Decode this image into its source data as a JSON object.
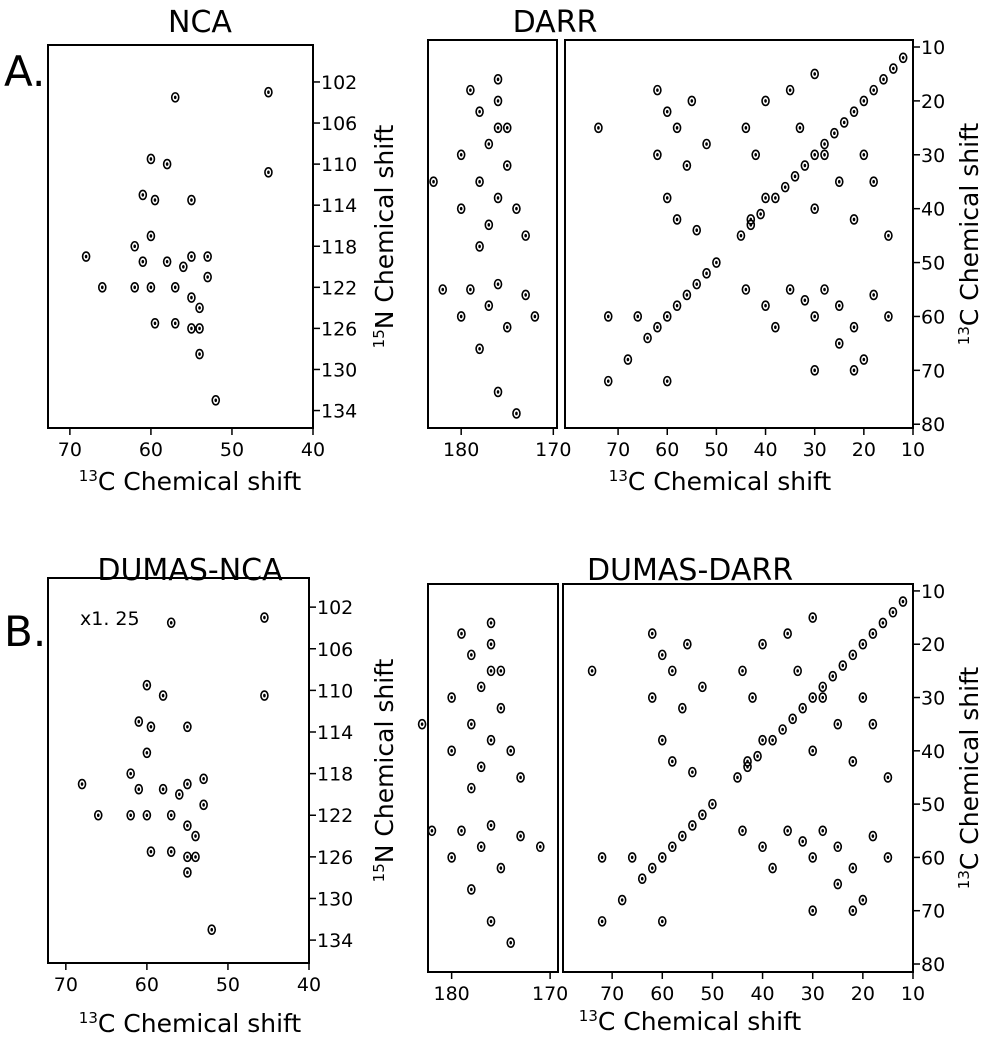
{
  "chart_data": [
    {
      "type": "scatter",
      "panel_label": "A.",
      "title": "NCA",
      "x_label": {
        "sup": "13",
        "text": "C Chemical shift"
      },
      "y_label": {
        "sup": "15",
        "text": "N Chemical shift"
      },
      "color": "#000000",
      "ylim": [
        98.4,
        135.7
      ],
      "yticks": [
        102,
        106,
        110,
        114,
        118,
        122,
        126,
        130,
        134
      ],
      "segments": [
        {
          "xlim": [
            72.7,
            40
          ],
          "xticks": [
            70,
            60,
            50,
            40
          ],
          "x": [
            57,
            45.5,
            45.5,
            60,
            58,
            61,
            59.5,
            55,
            60,
            62,
            58,
            56,
            55,
            53,
            68,
            66,
            62,
            60,
            57,
            55,
            54,
            55,
            59.5,
            57,
            54,
            54,
            52,
            61,
            53
          ],
          "y": [
            103.5,
            103,
            110.8,
            109.5,
            110,
            113,
            113.5,
            113.5,
            117,
            118,
            119.5,
            120,
            119,
            121,
            119,
            122,
            122,
            122,
            122,
            123,
            124,
            126,
            125.5,
            125.5,
            126,
            128.5,
            133,
            119.5,
            119
          ]
        }
      ]
    },
    {
      "type": "scatter",
      "title": "DARR",
      "x_label": {
        "sup": "13",
        "text": "C Chemical shift"
      },
      "y_label": {
        "sup": "13",
        "text": "C Chemical shift"
      },
      "color": "#000000",
      "ylim": [
        8.7,
        80.7
      ],
      "yticks": [
        10,
        20,
        30,
        40,
        50,
        60,
        70,
        80
      ],
      "segments": [
        {
          "xlim": [
            183.6,
            169.6
          ],
          "xticks": [
            180,
            170
          ],
          "x": [
            179,
            176,
            178,
            176,
            180,
            177,
            175,
            178,
            176,
            174,
            180,
            177,
            173,
            176,
            183,
            179,
            176,
            173,
            180,
            177,
            175,
            182,
            178,
            172,
            176,
            174,
            175,
            178
          ],
          "y": [
            18,
            16,
            22,
            25,
            30,
            28,
            32,
            35,
            38,
            40,
            40,
            43,
            45,
            20,
            35,
            55,
            54,
            56,
            60,
            58,
            62,
            55,
            66,
            60,
            74,
            78,
            25,
            47
          ]
        },
        {
          "xlim": [
            80.8,
            10
          ],
          "xticks": [
            70,
            60,
            50,
            40,
            30,
            20,
            10
          ],
          "x": [
            72,
            68,
            64,
            62,
            60,
            58,
            56,
            54,
            52,
            50,
            45,
            43,
            41,
            38,
            36,
            34,
            32,
            30,
            28,
            26,
            24,
            22,
            20,
            18,
            16,
            14,
            12,
            62,
            60,
            58,
            62,
            56,
            60,
            58,
            55,
            52,
            54,
            44,
            42,
            40,
            40,
            43,
            35,
            30,
            33,
            28,
            25,
            30,
            22,
            18,
            15,
            20,
            44,
            40,
            35,
            32,
            30,
            28,
            25,
            22,
            18,
            15,
            38,
            20,
            22,
            25,
            74,
            72,
            66,
            60,
            30
          ],
          "y": [
            72,
            68,
            64,
            62,
            60,
            58,
            56,
            54,
            52,
            50,
            45,
            43,
            41,
            38,
            36,
            34,
            32,
            30,
            28,
            26,
            24,
            22,
            20,
            18,
            16,
            14,
            12,
            18,
            22,
            25,
            30,
            32,
            38,
            42,
            20,
            28,
            44,
            25,
            30,
            20,
            38,
            42,
            18,
            15,
            25,
            30,
            35,
            40,
            42,
            35,
            45,
            30,
            55,
            58,
            55,
            57,
            60,
            55,
            58,
            62,
            56,
            60,
            62,
            68,
            70,
            65,
            25,
            60,
            60,
            72,
            70
          ]
        }
      ]
    },
    {
      "type": "scatter",
      "panel_label": "B.",
      "title": "DUMAS-NCA",
      "annotation": "x1. 25",
      "x_label": {
        "sup": "13",
        "text": "C Chemical shift"
      },
      "y_label": {
        "sup": "15",
        "text": "N Chemical shift"
      },
      "color": "#000000",
      "ylim": [
        99.2,
        136.2
      ],
      "yticks": [
        102,
        106,
        110,
        114,
        118,
        122,
        126,
        130,
        134
      ],
      "segments": [
        {
          "xlim": [
            72.2,
            40
          ],
          "xticks": [
            70,
            60,
            50,
            40
          ],
          "x": [
            57,
            45.5,
            45.5,
            60,
            58,
            61,
            59.5,
            55,
            60,
            62,
            58,
            56,
            55,
            53,
            68,
            66,
            62,
            60,
            57,
            55,
            54,
            55,
            59.5,
            57,
            54,
            55,
            52,
            61,
            53
          ],
          "y": [
            103.5,
            103,
            110.5,
            109.5,
            110.5,
            113,
            113.5,
            113.5,
            116,
            118,
            119.5,
            120,
            119,
            121,
            119,
            122,
            122,
            122,
            122,
            123,
            124,
            126,
            125.5,
            125.5,
            126,
            127.5,
            133,
            119.5,
            118.5
          ]
        }
      ]
    },
    {
      "type": "scatter",
      "title": "DUMAS-DARR",
      "x_label": {
        "sup": "13",
        "text": "C Chemical shift"
      },
      "y_label": {
        "sup": "13",
        "text": "C Chemical shift"
      },
      "color": "#000000",
      "ylim": [
        8.7,
        81.5
      ],
      "yticks": [
        10,
        20,
        30,
        40,
        50,
        60,
        70,
        80
      ],
      "segments": [
        {
          "xlim": [
            182.4,
            169.2
          ],
          "xticks": [
            180,
            170
          ],
          "x": [
            179,
            176,
            178,
            176,
            180,
            177,
            175,
            178,
            176,
            174,
            180,
            177,
            173,
            176,
            183,
            179,
            176,
            173,
            180,
            177,
            175,
            182,
            178,
            171,
            176,
            174,
            175,
            178
          ],
          "y": [
            18,
            16,
            22,
            25,
            30,
            28,
            32,
            35,
            38,
            40,
            40,
            43,
            45,
            20,
            35,
            55,
            54,
            56,
            60,
            58,
            62,
            55,
            66,
            58,
            72,
            76,
            25,
            47
          ]
        },
        {
          "xlim": [
            79.8,
            10
          ],
          "xticks": [
            70,
            60,
            50,
            40,
            30,
            20,
            10
          ],
          "x": [
            72,
            68,
            64,
            62,
            60,
            58,
            56,
            54,
            52,
            50,
            45,
            43,
            41,
            38,
            36,
            34,
            32,
            30,
            28,
            26,
            24,
            22,
            20,
            18,
            16,
            14,
            12,
            62,
            60,
            58,
            62,
            56,
            60,
            58,
            55,
            52,
            54,
            44,
            42,
            40,
            40,
            43,
            35,
            30,
            33,
            28,
            25,
            30,
            22,
            18,
            15,
            20,
            44,
            40,
            35,
            32,
            30,
            28,
            25,
            22,
            18,
            15,
            38,
            20,
            22,
            25,
            74,
            72,
            66,
            60,
            30
          ],
          "y": [
            72,
            68,
            64,
            62,
            60,
            58,
            56,
            54,
            52,
            50,
            45,
            43,
            41,
            38,
            36,
            34,
            32,
            30,
            28,
            26,
            24,
            22,
            20,
            18,
            16,
            14,
            12,
            18,
            22,
            25,
            30,
            32,
            38,
            42,
            20,
            28,
            44,
            25,
            30,
            20,
            38,
            42,
            18,
            15,
            25,
            30,
            35,
            40,
            42,
            35,
            45,
            30,
            55,
            58,
            55,
            57,
            60,
            55,
            58,
            62,
            56,
            60,
            62,
            68,
            70,
            65,
            25,
            60,
            60,
            72,
            70
          ]
        }
      ]
    }
  ]
}
